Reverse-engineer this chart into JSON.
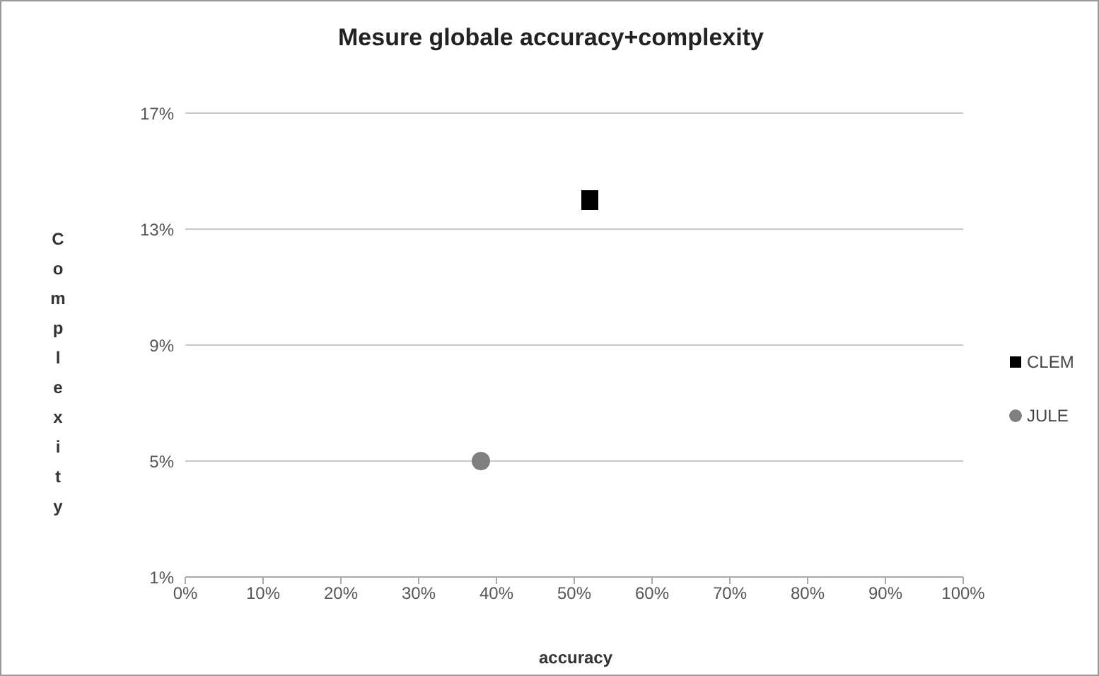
{
  "chart_data": {
    "type": "scatter",
    "title": "Mesure globale accuracy+complexity",
    "xlabel": "accuracy",
    "ylabel": "Complexity",
    "xlim": [
      0,
      100
    ],
    "xticks": [
      {
        "value": 0,
        "label": "0%"
      },
      {
        "value": 10,
        "label": "10%"
      },
      {
        "value": 20,
        "label": "20%"
      },
      {
        "value": 30,
        "label": "30%"
      },
      {
        "value": 40,
        "label": "40%"
      },
      {
        "value": 50,
        "label": "50%"
      },
      {
        "value": 60,
        "label": "60%"
      },
      {
        "value": 70,
        "label": "70%"
      },
      {
        "value": 80,
        "label": "80%"
      },
      {
        "value": 90,
        "label": "90%"
      },
      {
        "value": 100,
        "label": "100%"
      }
    ],
    "ylim": [
      1,
      17
    ],
    "yticks": [
      {
        "value": 1,
        "label": "1%"
      },
      {
        "value": 5,
        "label": "5%"
      },
      {
        "value": 9,
        "label": "9%"
      },
      {
        "value": 13,
        "label": "13%"
      },
      {
        "value": 17,
        "label": "17%"
      }
    ],
    "grid": "y",
    "legend": "right",
    "series": [
      {
        "name": "CLEM",
        "color": "#000000",
        "marker": "square",
        "x": [
          52
        ],
        "values": [
          14
        ]
      },
      {
        "name": "JULE",
        "color": "#808080",
        "marker": "circle",
        "x": [
          38
        ],
        "values": [
          5
        ]
      }
    ]
  }
}
